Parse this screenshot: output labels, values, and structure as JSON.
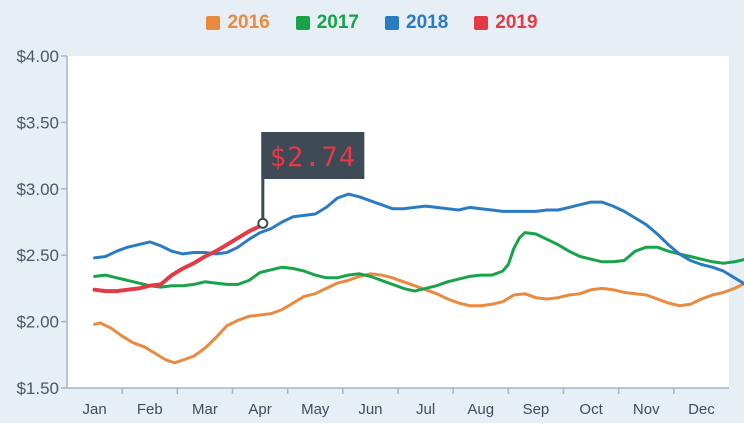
{
  "chart_data": {
    "type": "line",
    "title": "",
    "xlabel": "",
    "ylabel": "",
    "categories": [
      "Jan",
      "Feb",
      "Mar",
      "Apr",
      "May",
      "Jun",
      "Jul",
      "Aug",
      "Sep",
      "Oct",
      "Nov",
      "Dec"
    ],
    "y_ticks": [
      "$4.00",
      "$3.50",
      "$3.00",
      "$2.50",
      "$2.00",
      "$1.50"
    ],
    "ylim": [
      1.5,
      4.0
    ],
    "grid": false,
    "legend_position": "top-center",
    "annotation": {
      "text": "$2.74",
      "x": 3.05,
      "y": 2.74
    },
    "series": [
      {
        "name": "2016",
        "color": "#e98a3e",
        "points": [
          [
            0.0,
            1.98
          ],
          [
            0.1,
            1.99
          ],
          [
            0.3,
            1.95
          ],
          [
            0.5,
            1.89
          ],
          [
            0.7,
            1.84
          ],
          [
            0.9,
            1.81
          ],
          [
            1.1,
            1.76
          ],
          [
            1.3,
            1.71
          ],
          [
            1.45,
            1.69
          ],
          [
            1.6,
            1.71
          ],
          [
            1.8,
            1.74
          ],
          [
            2.0,
            1.8
          ],
          [
            2.2,
            1.88
          ],
          [
            2.4,
            1.97
          ],
          [
            2.6,
            2.01
          ],
          [
            2.8,
            2.04
          ],
          [
            3.0,
            2.05
          ],
          [
            3.2,
            2.06
          ],
          [
            3.4,
            2.09
          ],
          [
            3.6,
            2.14
          ],
          [
            3.8,
            2.19
          ],
          [
            4.0,
            2.21
          ],
          [
            4.2,
            2.25
          ],
          [
            4.4,
            2.29
          ],
          [
            4.6,
            2.31
          ],
          [
            4.8,
            2.34
          ],
          [
            5.0,
            2.36
          ],
          [
            5.2,
            2.35
          ],
          [
            5.4,
            2.33
          ],
          [
            5.6,
            2.3
          ],
          [
            5.8,
            2.27
          ],
          [
            6.0,
            2.24
          ],
          [
            6.2,
            2.21
          ],
          [
            6.4,
            2.17
          ],
          [
            6.6,
            2.14
          ],
          [
            6.8,
            2.12
          ],
          [
            7.0,
            2.12
          ],
          [
            7.2,
            2.13
          ],
          [
            7.4,
            2.15
          ],
          [
            7.6,
            2.2
          ],
          [
            7.8,
            2.21
          ],
          [
            8.0,
            2.18
          ],
          [
            8.2,
            2.17
          ],
          [
            8.4,
            2.18
          ],
          [
            8.6,
            2.2
          ],
          [
            8.8,
            2.21
          ],
          [
            9.0,
            2.24
          ],
          [
            9.2,
            2.25
          ],
          [
            9.4,
            2.24
          ],
          [
            9.6,
            2.22
          ],
          [
            9.8,
            2.21
          ],
          [
            10.0,
            2.2
          ],
          [
            10.2,
            2.17
          ],
          [
            10.4,
            2.14
          ],
          [
            10.6,
            2.12
          ],
          [
            10.8,
            2.13
          ],
          [
            11.0,
            2.17
          ],
          [
            11.2,
            2.2
          ],
          [
            11.4,
            2.22
          ],
          [
            11.6,
            2.25
          ],
          [
            11.8,
            2.29
          ],
          [
            11.9,
            2.32
          ]
        ]
      },
      {
        "name": "2017",
        "color": "#18a34a",
        "points": [
          [
            0.0,
            2.34
          ],
          [
            0.2,
            2.35
          ],
          [
            0.4,
            2.33
          ],
          [
            0.6,
            2.31
          ],
          [
            0.8,
            2.29
          ],
          [
            1.0,
            2.27
          ],
          [
            1.2,
            2.26
          ],
          [
            1.4,
            2.27
          ],
          [
            1.6,
            2.27
          ],
          [
            1.8,
            2.28
          ],
          [
            2.0,
            2.3
          ],
          [
            2.2,
            2.29
          ],
          [
            2.4,
            2.28
          ],
          [
            2.6,
            2.28
          ],
          [
            2.8,
            2.31
          ],
          [
            3.0,
            2.37
          ],
          [
            3.2,
            2.39
          ],
          [
            3.4,
            2.41
          ],
          [
            3.6,
            2.4
          ],
          [
            3.8,
            2.38
          ],
          [
            4.0,
            2.35
          ],
          [
            4.2,
            2.33
          ],
          [
            4.4,
            2.33
          ],
          [
            4.6,
            2.35
          ],
          [
            4.8,
            2.36
          ],
          [
            5.0,
            2.34
          ],
          [
            5.2,
            2.31
          ],
          [
            5.4,
            2.28
          ],
          [
            5.6,
            2.25
          ],
          [
            5.8,
            2.23
          ],
          [
            6.0,
            2.25
          ],
          [
            6.2,
            2.27
          ],
          [
            6.4,
            2.3
          ],
          [
            6.6,
            2.32
          ],
          [
            6.8,
            2.34
          ],
          [
            7.0,
            2.35
          ],
          [
            7.2,
            2.35
          ],
          [
            7.4,
            2.38
          ],
          [
            7.5,
            2.43
          ],
          [
            7.6,
            2.55
          ],
          [
            7.7,
            2.63
          ],
          [
            7.8,
            2.67
          ],
          [
            8.0,
            2.66
          ],
          [
            8.2,
            2.62
          ],
          [
            8.4,
            2.58
          ],
          [
            8.6,
            2.53
          ],
          [
            8.8,
            2.49
          ],
          [
            9.0,
            2.47
          ],
          [
            9.2,
            2.45
          ],
          [
            9.4,
            2.45
          ],
          [
            9.6,
            2.46
          ],
          [
            9.8,
            2.53
          ],
          [
            10.0,
            2.56
          ],
          [
            10.2,
            2.56
          ],
          [
            10.4,
            2.53
          ],
          [
            10.6,
            2.51
          ],
          [
            10.8,
            2.49
          ],
          [
            11.0,
            2.47
          ],
          [
            11.2,
            2.45
          ],
          [
            11.4,
            2.44
          ],
          [
            11.6,
            2.45
          ],
          [
            11.8,
            2.47
          ],
          [
            11.9,
            2.49
          ]
        ]
      },
      {
        "name": "2018",
        "color": "#2b7bc2",
        "points": [
          [
            0.0,
            2.48
          ],
          [
            0.2,
            2.49
          ],
          [
            0.4,
            2.53
          ],
          [
            0.6,
            2.56
          ],
          [
            0.8,
            2.58
          ],
          [
            1.0,
            2.6
          ],
          [
            1.2,
            2.57
          ],
          [
            1.4,
            2.53
          ],
          [
            1.6,
            2.51
          ],
          [
            1.8,
            2.52
          ],
          [
            2.0,
            2.52
          ],
          [
            2.2,
            2.51
          ],
          [
            2.4,
            2.52
          ],
          [
            2.6,
            2.56
          ],
          [
            2.8,
            2.62
          ],
          [
            3.0,
            2.67
          ],
          [
            3.2,
            2.7
          ],
          [
            3.4,
            2.75
          ],
          [
            3.6,
            2.79
          ],
          [
            3.8,
            2.8
          ],
          [
            4.0,
            2.81
          ],
          [
            4.2,
            2.86
          ],
          [
            4.4,
            2.93
          ],
          [
            4.6,
            2.96
          ],
          [
            4.8,
            2.94
          ],
          [
            5.0,
            2.91
          ],
          [
            5.2,
            2.88
          ],
          [
            5.4,
            2.85
          ],
          [
            5.6,
            2.85
          ],
          [
            5.8,
            2.86
          ],
          [
            6.0,
            2.87
          ],
          [
            6.2,
            2.86
          ],
          [
            6.4,
            2.85
          ],
          [
            6.6,
            2.84
          ],
          [
            6.8,
            2.86
          ],
          [
            7.0,
            2.85
          ],
          [
            7.2,
            2.84
          ],
          [
            7.4,
            2.83
          ],
          [
            7.6,
            2.83
          ],
          [
            7.8,
            2.83
          ],
          [
            8.0,
            2.83
          ],
          [
            8.2,
            2.84
          ],
          [
            8.4,
            2.84
          ],
          [
            8.6,
            2.86
          ],
          [
            8.8,
            2.88
          ],
          [
            9.0,
            2.9
          ],
          [
            9.2,
            2.9
          ],
          [
            9.4,
            2.87
          ],
          [
            9.6,
            2.83
          ],
          [
            9.8,
            2.78
          ],
          [
            10.0,
            2.73
          ],
          [
            10.2,
            2.66
          ],
          [
            10.4,
            2.58
          ],
          [
            10.6,
            2.51
          ],
          [
            10.8,
            2.46
          ],
          [
            11.0,
            2.43
          ],
          [
            11.2,
            2.41
          ],
          [
            11.4,
            2.38
          ],
          [
            11.6,
            2.33
          ],
          [
            11.8,
            2.28
          ],
          [
            11.9,
            2.26
          ]
        ]
      },
      {
        "name": "2019",
        "color": "#e23a47",
        "points": [
          [
            0.0,
            2.24
          ],
          [
            0.2,
            2.23
          ],
          [
            0.4,
            2.23
          ],
          [
            0.6,
            2.24
          ],
          [
            0.8,
            2.25
          ],
          [
            1.0,
            2.27
          ],
          [
            1.2,
            2.28
          ],
          [
            1.4,
            2.35
          ],
          [
            1.6,
            2.4
          ],
          [
            1.8,
            2.44
          ],
          [
            2.0,
            2.49
          ],
          [
            2.2,
            2.53
          ],
          [
            2.4,
            2.58
          ],
          [
            2.6,
            2.63
          ],
          [
            2.8,
            2.68
          ],
          [
            3.0,
            2.72
          ],
          [
            3.05,
            2.74
          ]
        ]
      }
    ]
  }
}
